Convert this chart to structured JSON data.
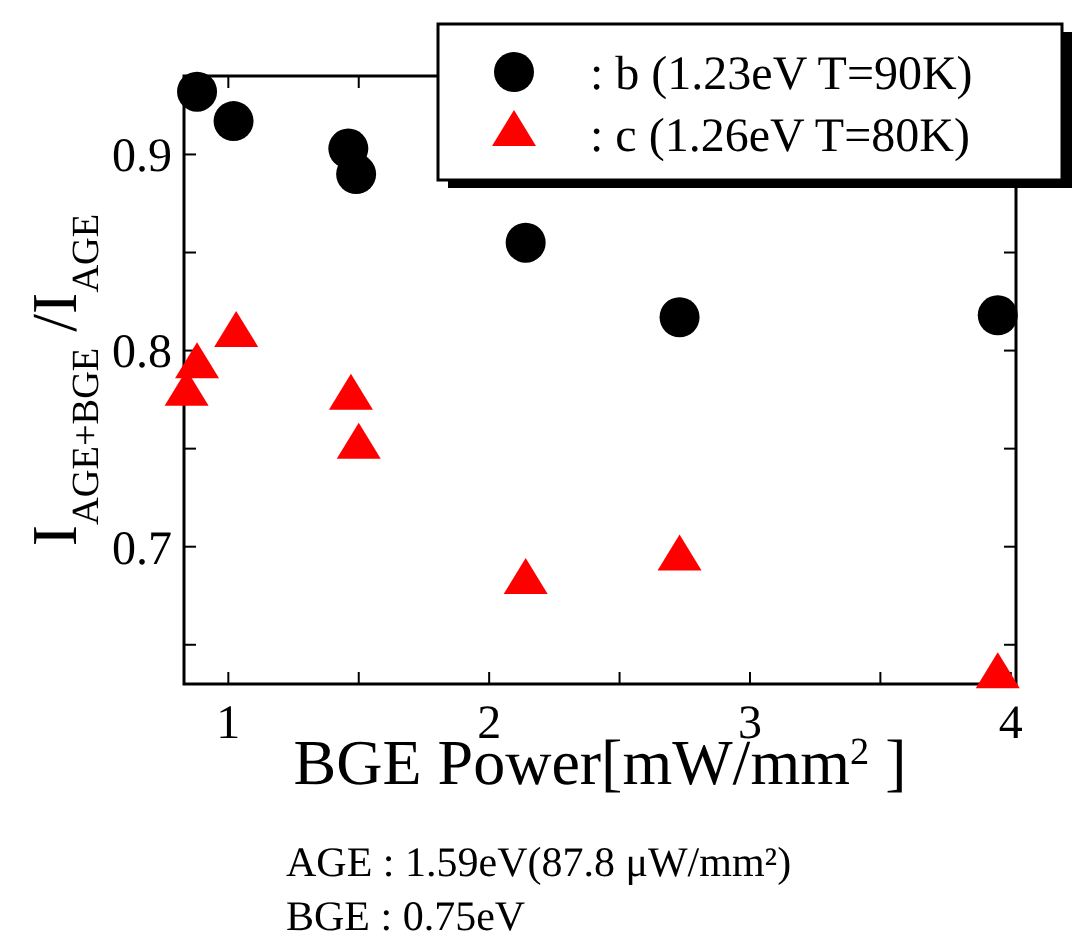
{
  "chart_data": {
    "type": "scatter",
    "xlabel": "BGE Power[mW/mm$^{2}$]",
    "ylabel": "I$_{AGE+BGE}$/I$_{AGE}$",
    "xlim": [
      0.83,
      4.02
    ],
    "ylim": [
      0.63,
      0.94
    ],
    "xticks": [
      1,
      {
        "value": 1.5,
        "label": null
      },
      2,
      {
        "value": 2.5,
        "label": null
      },
      3,
      {
        "value": 3.5,
        "label": null
      },
      4
    ],
    "yticks": [
      {
        "value": 0.65,
        "label": null
      },
      0.7,
      {
        "value": 0.75,
        "label": null
      },
      0.8,
      {
        "value": 0.85,
        "label": null
      },
      0.9
    ],
    "legend": "top right",
    "grid": false,
    "series": [
      {
        "name": ": b (1.23eV T=90K)",
        "color": "#000000",
        "marker": "circle",
        "x": [
          0.88,
          1.02,
          1.46,
          1.49,
          2.14,
          2.73,
          3.95
        ],
        "values": [
          0.932,
          0.917,
          0.903,
          0.89,
          0.855,
          0.817,
          0.818
        ]
      },
      {
        "name": ": c (1.26eV T=80K)",
        "color": "#ff0000",
        "marker": "triangle",
        "x": [
          0.84,
          0.88,
          1.03,
          1.47,
          1.5,
          2.14,
          2.73,
          3.95
        ],
        "values": [
          0.778,
          0.792,
          0.808,
          0.776,
          0.751,
          0.682,
          0.694,
          0.634
        ]
      }
    ],
    "annotations": [
      "AGE : 1.59eV(87.8 μW/mm²)",
      "BGE : 0.75eV"
    ]
  }
}
